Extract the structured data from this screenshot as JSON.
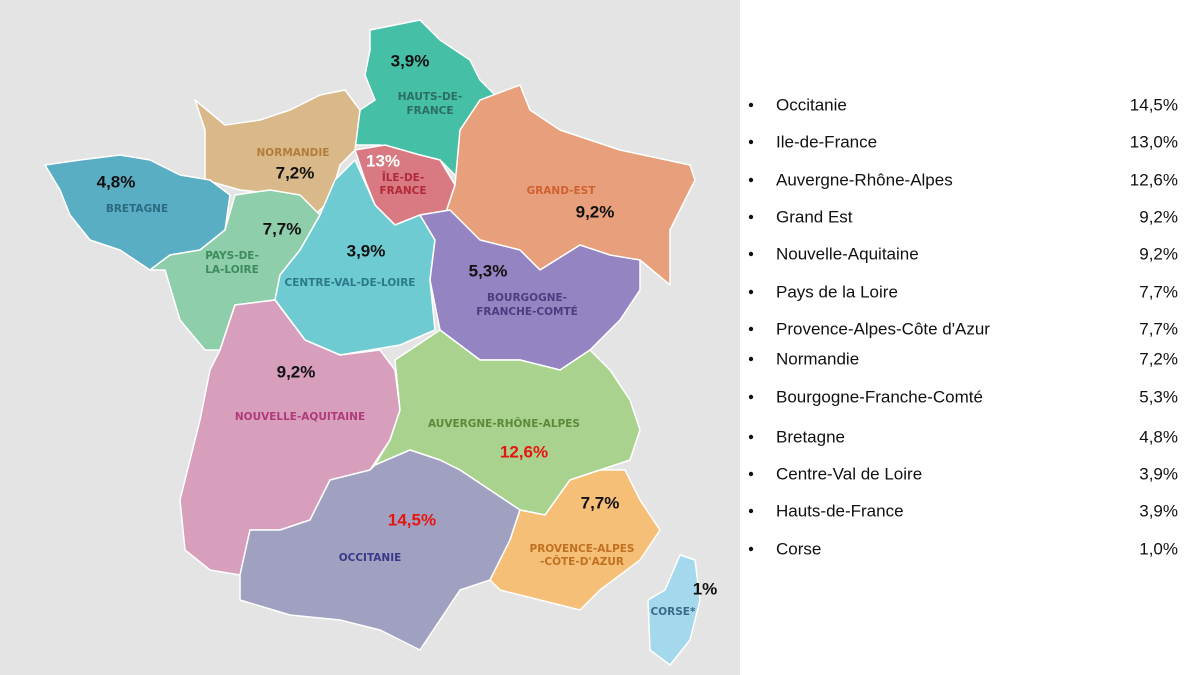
{
  "map": {
    "regions": [
      {
        "label": [
          "HAUTS-DE-",
          "FRANCE"
        ],
        "value": "3,9%"
      },
      {
        "label": [
          "NORMANDIE"
        ],
        "value": "7,2%"
      },
      {
        "label": [
          "BRETAGNE"
        ],
        "value": "4,8%"
      },
      {
        "label": [
          "ÎLE-DE-",
          "FRANCE"
        ],
        "value": "13%"
      },
      {
        "label": [
          "GRAND-EST"
        ],
        "value": "9,2%"
      },
      {
        "label": [
          "PAYS-DE-",
          "LA-LOIRE"
        ],
        "value": "7,7%"
      },
      {
        "label": [
          "CENTRE-VAL-DE-LOIRE"
        ],
        "value": "3,9%"
      },
      {
        "label": [
          "BOURGOGNE-",
          "FRANCHE-COMTÉ"
        ],
        "value": "5,3%"
      },
      {
        "label": [
          "NOUVELLE-AQUITAINE"
        ],
        "value": "9,2%"
      },
      {
        "label": [
          "AUVERGNE-RHÔNE-ALPES"
        ],
        "value": "12,6%"
      },
      {
        "label": [
          "OCCITANIE"
        ],
        "value": "14,5%"
      },
      {
        "label": [
          "PROVENCE-ALPES",
          "-CÔTE-D'AZUR"
        ],
        "value": "7,7%"
      },
      {
        "label": [
          "CORSE*"
        ],
        "value": "1%"
      }
    ]
  },
  "list": {
    "items": [
      {
        "name": "Occitanie",
        "value": "14,5%"
      },
      {
        "name": "Ile-de-France",
        "value": "13,0%"
      },
      {
        "name": "Auvergne-Rhône-Alpes",
        "value": "12,6%"
      },
      {
        "name": "Grand Est",
        "value": "9,2%"
      },
      {
        "name": "Nouvelle-Aquitaine",
        "value": "9,2%"
      },
      {
        "name": "Pays de la Loire",
        "value": "7,7%"
      },
      {
        "name": "Provence-Alpes-Côte d'Azur",
        "value": "7,7%"
      },
      {
        "name": "Normandie",
        "value": "7,2%"
      },
      {
        "name": "Bourgogne-Franche-Comté",
        "value": "5,3%"
      },
      {
        "name": "Bretagne",
        "value": "4,8%"
      },
      {
        "name": "Centre-Val de Loire",
        "value": "3,9%"
      },
      {
        "name": "Hauts-de-France",
        "value": "3,9%"
      },
      {
        "name": "Corse",
        "value": "1,0%"
      }
    ]
  }
}
